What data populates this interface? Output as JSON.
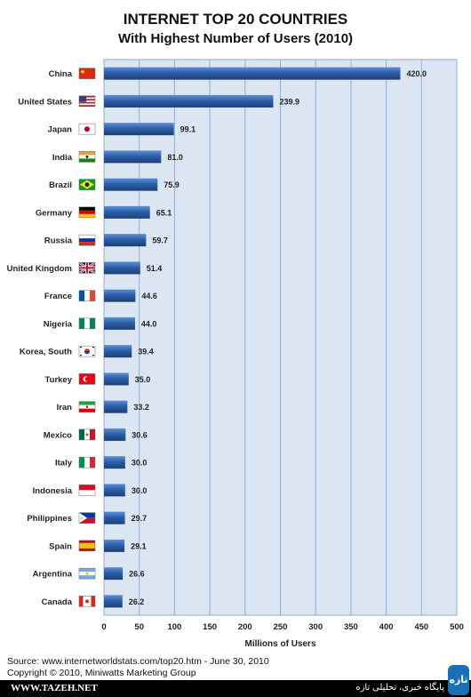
{
  "chart_data": {
    "type": "bar",
    "orientation": "horizontal",
    "title": "INTERNET TOP 20 COUNTRIES",
    "subtitle": "With Highest Number of Users (2010)",
    "xlabel": "Millions of Users",
    "ylabel": "",
    "xlim": [
      0,
      500
    ],
    "x_ticks": [
      0,
      50,
      100,
      150,
      200,
      250,
      300,
      350,
      400,
      450,
      500
    ],
    "grid": true,
    "bar_color": "#2d5fa8",
    "plot_background": "#dce6f2",
    "categories": [
      "China",
      "United States",
      "Japan",
      "India",
      "Brazil",
      "Germany",
      "Russia",
      "United Kingdom",
      "France",
      "Nigeria",
      "Korea, South",
      "Turkey",
      "Iran",
      "Mexico",
      "Italy",
      "Indonesia",
      "Philippines",
      "Spain",
      "Argentina",
      "Canada"
    ],
    "values": [
      420.0,
      239.9,
      99.1,
      81.0,
      75.9,
      65.1,
      59.7,
      51.4,
      44.6,
      44.0,
      39.4,
      35.0,
      33.2,
      30.6,
      30.0,
      30.0,
      29.7,
      29.1,
      26.6,
      26.2
    ],
    "value_labels": [
      "420.0",
      "239.9",
      "99.1",
      "81.0",
      "75.9",
      "65.1",
      "59.7",
      "51.4",
      "44.6",
      "44.0",
      "39.4",
      "35.0",
      "33.2",
      "30.6",
      "30.0",
      "30.0",
      "29.7",
      "29.1",
      "26.6",
      "26.2"
    ],
    "flag_icons": [
      "china-flag-icon",
      "united-states-flag-icon",
      "japan-flag-icon",
      "india-flag-icon",
      "brazil-flag-icon",
      "germany-flag-icon",
      "russia-flag-icon",
      "united-kingdom-flag-icon",
      "france-flag-icon",
      "nigeria-flag-icon",
      "korea-south-flag-icon",
      "turkey-flag-icon",
      "iran-flag-icon",
      "mexico-flag-icon",
      "italy-flag-icon",
      "indonesia-flag-icon",
      "philippines-flag-icon",
      "spain-flag-icon",
      "argentina-flag-icon",
      "canada-flag-icon"
    ]
  },
  "source": "Source: www.internetworldstats.com/top20.htm - June 30, 2010",
  "copyright": "Copyright © 2010, Miniwatts Marketing Group",
  "footer": {
    "site": "WWW.TAZEH.NET",
    "tagline": "پایگاه خبری، تحلیلی تازه",
    "logo_text": "تازه"
  }
}
